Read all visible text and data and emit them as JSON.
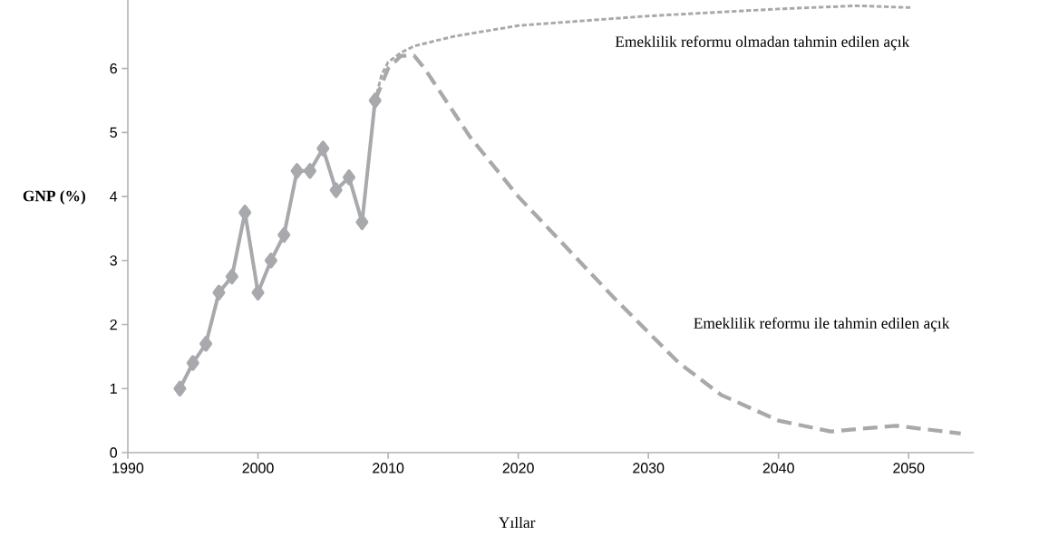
{
  "chart_data": {
    "type": "line",
    "xlabel": "Yıllar",
    "ylabel": "GNP (%)",
    "xlim": [
      1990,
      2055
    ],
    "ylim": [
      0,
      7.07
    ],
    "xticks": [
      1990,
      2000,
      2010,
      2020,
      2030,
      2040,
      2050
    ],
    "yticks": [
      0,
      1,
      2,
      3,
      4,
      5,
      6
    ],
    "series": [
      {
        "color": "#a8a9ad",
        "marker": "diamond",
        "line_style": "solid",
        "x": [
          1994,
          1995,
          1996,
          1997,
          1998,
          1999,
          2000,
          2001,
          2002,
          2003,
          2004,
          2005,
          2006,
          2007,
          2008,
          2009
        ],
        "values": [
          1.0,
          1.4,
          1.7,
          2.5,
          2.75,
          3.75,
          2.5,
          3.0,
          3.4,
          4.4,
          4.4,
          4.75,
          4.1,
          4.3,
          3.6,
          5.5
        ]
      },
      {
        "name": "Emeklilik reformu olmadan tahmin edilen açık",
        "color": "#a8a9ad",
        "marker": "none",
        "line_style": "dotted",
        "x": [
          2009,
          2009.5,
          2010,
          2011,
          2012,
          2015,
          2020,
          2030,
          2040,
          2046,
          2050.3
        ],
        "values": [
          5.5,
          5.9,
          6.1,
          6.25,
          6.35,
          6.5,
          6.67,
          6.82,
          6.93,
          6.98,
          6.95
        ]
      },
      {
        "name": "Emeklilik reformu ile tahmin edilen açık",
        "color": "#a8a9ad",
        "marker": "none",
        "line_style": "dashed",
        "x": [
          2009,
          2010,
          2011,
          2012,
          2012.8,
          2016.3,
          2020,
          2027.3,
          2032.3,
          2035.6,
          2040,
          2044,
          2049,
          2054
        ],
        "values": [
          5.5,
          6.0,
          6.2,
          6.2,
          6.0,
          4.93,
          4.0,
          2.43,
          1.41,
          0.9,
          0.5,
          0.33,
          0.42,
          0.3
        ]
      }
    ]
  }
}
